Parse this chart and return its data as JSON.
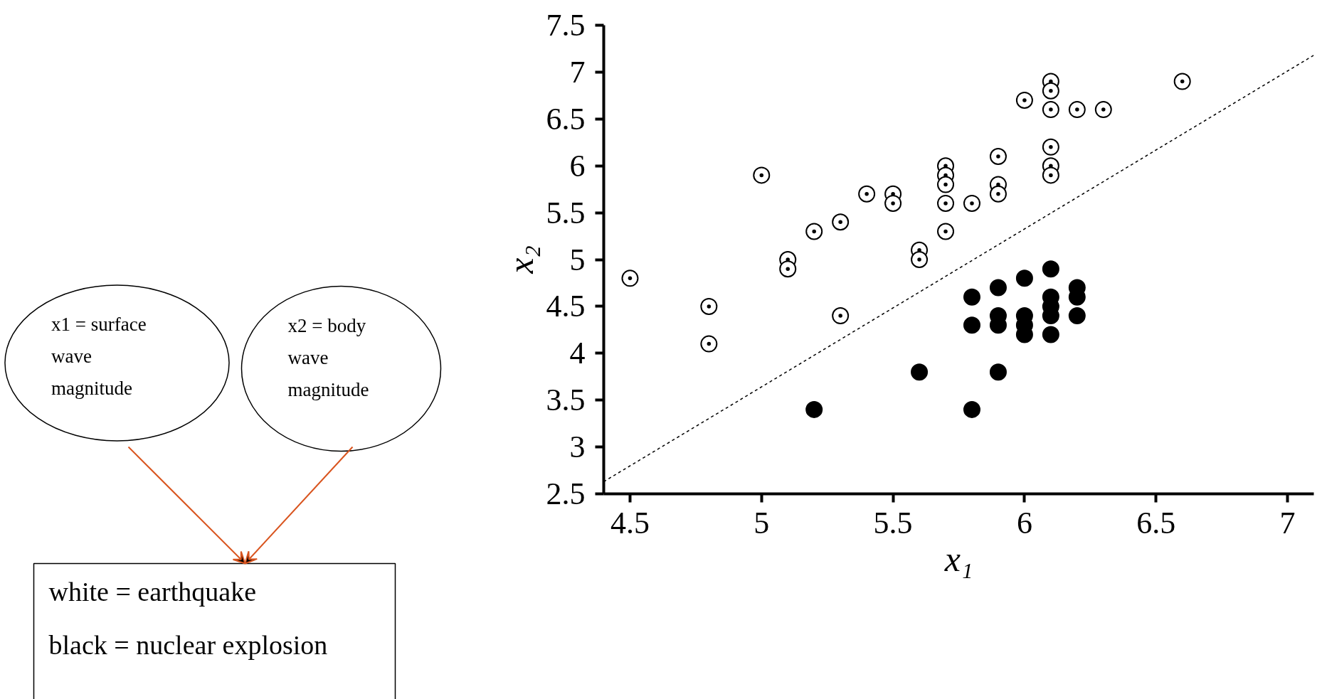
{
  "chart_data": {
    "type": "scatter",
    "xlabel": "x₁",
    "ylabel": "x₂",
    "xlim": [
      4.4,
      7.1
    ],
    "ylim": [
      2.5,
      7.5
    ],
    "xticks": [
      4.5,
      5,
      5.5,
      6,
      6.5,
      7
    ],
    "yticks": [
      2.5,
      3,
      3.5,
      4,
      4.5,
      5,
      5.5,
      6,
      6.5,
      7,
      7.5
    ],
    "grid": false,
    "marker": "circle",
    "annotations": [
      "x1 = surface wave magnitude",
      "x2 = body wave magnitude",
      "white = earthquake",
      "black = nuclear explosion"
    ],
    "series": [
      {
        "color": "#ffffff",
        "x": [
          4.5,
          4.8,
          4.8,
          5.0,
          5.1,
          5.1,
          5.2,
          5.3,
          5.3,
          5.4,
          5.5,
          5.5,
          5.6,
          5.6,
          5.7,
          5.7,
          5.7,
          5.7,
          5.7,
          5.8,
          5.9,
          5.9,
          5.9,
          6.0,
          6.1,
          6.1,
          6.1,
          6.1,
          6.1,
          6.1,
          6.2,
          6.3,
          6.6
        ],
        "values": [
          4.8,
          4.5,
          4.1,
          5.9,
          5.0,
          4.9,
          5.3,
          5.4,
          4.4,
          5.7,
          5.7,
          5.6,
          5.1,
          5.0,
          6.0,
          5.9,
          5.8,
          5.6,
          5.3,
          5.6,
          6.1,
          5.8,
          5.7,
          6.7,
          6.9,
          6.8,
          6.6,
          6.2,
          6.0,
          5.9,
          6.6,
          6.6,
          6.9
        ]
      },
      {
        "color": "#000000",
        "x": [
          5.2,
          5.6,
          5.8,
          5.8,
          5.8,
          5.9,
          5.9,
          5.9,
          5.9,
          6.0,
          6.0,
          6.0,
          6.0,
          6.1,
          6.1,
          6.1,
          6.1,
          6.1,
          6.2,
          6.2,
          6.2
        ],
        "values": [
          3.4,
          3.8,
          4.6,
          4.3,
          3.4,
          4.7,
          4.4,
          4.3,
          3.8,
          4.8,
          4.4,
          4.3,
          4.2,
          4.9,
          4.6,
          4.5,
          4.4,
          4.2,
          4.7,
          4.6,
          4.4
        ]
      },
      {
        "type": "line",
        "color": "#000000",
        "line_style": "dashed",
        "marker": "none",
        "x": [
          4.4,
          7.1
        ],
        "values": [
          2.63,
          7.18
        ]
      }
    ]
  }
}
